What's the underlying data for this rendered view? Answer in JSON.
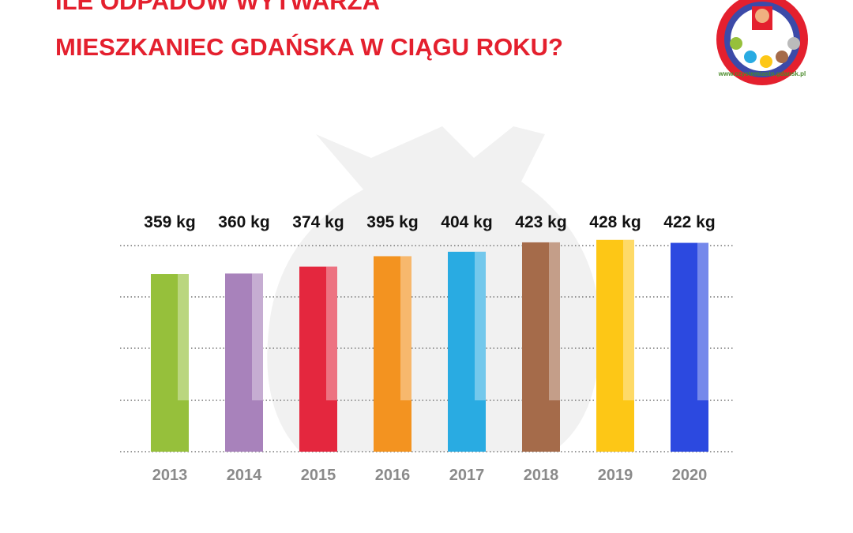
{
  "chart_data": {
    "type": "bar",
    "title": [
      "ILE ODPADÓW WYTWARZA",
      "MIESZKANIEC GDAŃSKA W CIĄGU ROKU?"
    ],
    "categories": [
      "2013",
      "2014",
      "2015",
      "2016",
      "2017",
      "2018",
      "2019",
      "2020"
    ],
    "values": [
      359,
      360,
      374,
      395,
      404,
      423,
      428,
      422
    ],
    "value_labels": [
      "359 kg",
      "360 kg",
      "374 kg",
      "395 kg",
      "404 kg",
      "423 kg",
      "428 kg",
      "422 kg"
    ],
    "colors": [
      "#96c03b",
      "#a882bb",
      "#e4273e",
      "#f39320",
      "#29abe2",
      "#a56b4a",
      "#fdc716",
      "#2c49e0"
    ],
    "ylim": [
      0,
      450
    ]
  },
  "logo": {
    "url": "www.czystemiasto.gdansk.pl"
  }
}
